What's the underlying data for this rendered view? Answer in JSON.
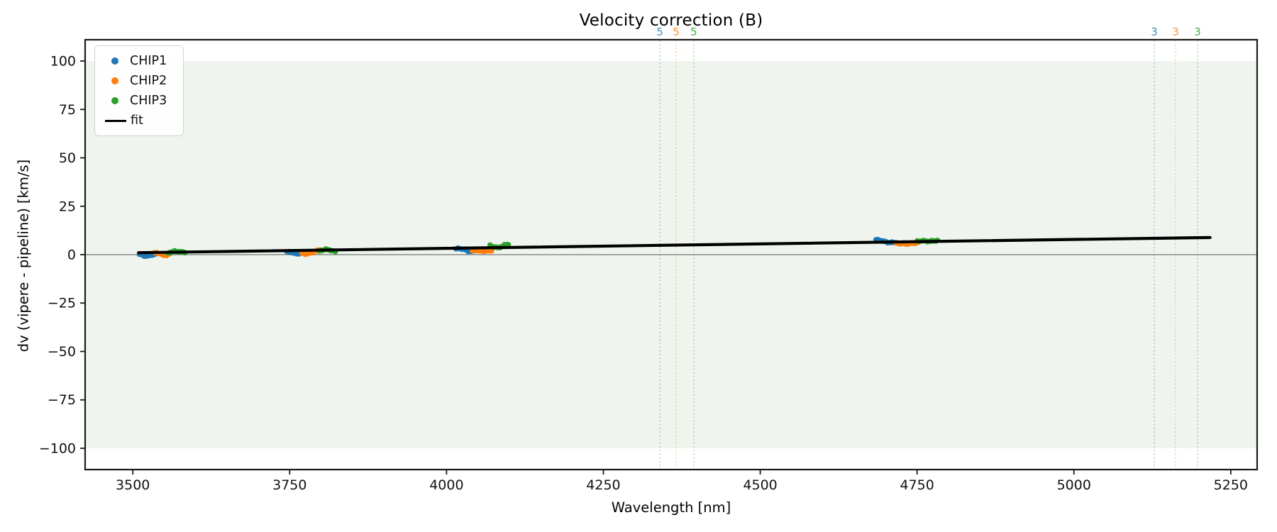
{
  "figure": {
    "kind": "matplotlib-style scatter plot with linear fit",
    "background": "#ffffff"
  },
  "chart_data": {
    "type": "scatter",
    "title": "Velocity correction (B)",
    "xlabel": "Wavelength [nm]",
    "ylabel": "dv (vipere - pipeline) [km/s]",
    "xlim": [
      3424,
      5292
    ],
    "ylim": [
      -111,
      111
    ],
    "x_ticks": [
      3500,
      3750,
      4000,
      4250,
      4500,
      4750,
      5000,
      5250
    ],
    "y_ticks": [
      -100,
      -75,
      -50,
      -25,
      0,
      25,
      50,
      75,
      100
    ],
    "grid": false,
    "legend_position": "upper left",
    "shaded_band": {
      "y_min": -100,
      "y_max": 100,
      "color": "#eff5ee"
    },
    "zero_line": {
      "y": 0,
      "color": "#888888"
    },
    "series": [
      {
        "name": "CHIP1",
        "color": "#1f77b4",
        "segments": [
          {
            "x_start": 3510,
            "x_end": 3537,
            "y": [
              0.1,
              -0.3,
              -0.8,
              -0.5,
              0.0,
              0.2
            ]
          },
          {
            "x_start": 3745,
            "x_end": 3772,
            "y": [
              1.2,
              1.5,
              0.9,
              0.4,
              0.8,
              1.0
            ]
          },
          {
            "x_start": 4014,
            "x_end": 4043,
            "y": [
              2.8,
              3.3,
              2.9,
              2.2,
              1.6,
              2.0
            ]
          },
          {
            "x_start": 4684,
            "x_end": 4718,
            "y": [
              7.8,
              7.4,
              6.8,
              6.3,
              6.2,
              6.4
            ]
          }
        ]
      },
      {
        "name": "CHIP2",
        "color": "#ff7f0e",
        "segments": [
          {
            "x_start": 3534,
            "x_end": 3560,
            "y": [
              0.8,
              1.0,
              0.3,
              -0.4,
              -0.2,
              0.5
            ]
          },
          {
            "x_start": 3769,
            "x_end": 3799,
            "y": [
              0.7,
              0.4,
              0.6,
              1.2,
              2.0,
              2.4
            ]
          },
          {
            "x_start": 4041,
            "x_end": 4072,
            "y": [
              2.0,
              2.2,
              2.0,
              1.8,
              2.0,
              2.2
            ]
          },
          {
            "x_start": 4716,
            "x_end": 4752,
            "y": [
              6.0,
              5.8,
              5.6,
              5.7,
              6.0,
              6.2
            ]
          }
        ]
      },
      {
        "name": "CHIP3",
        "color": "#2ca02c",
        "segments": [
          {
            "x_start": 3556,
            "x_end": 3584,
            "y": [
              0.8,
              1.4,
              1.8,
              1.6,
              1.3,
              1.2
            ]
          },
          {
            "x_start": 3797,
            "x_end": 3823,
            "y": [
              1.8,
              2.4,
              2.7,
              2.5,
              2.0,
              1.6
            ]
          },
          {
            "x_start": 4069,
            "x_end": 4099,
            "y": [
              4.8,
              4.0,
              3.6,
              4.0,
              5.0,
              5.6
            ]
          },
          {
            "x_start": 4750,
            "x_end": 4783,
            "y": [
              6.8,
              7.2,
              7.0,
              6.9,
              7.1,
              7.3
            ]
          }
        ]
      }
    ],
    "fit_line": {
      "label": "fit",
      "color": "#000000",
      "x_start": 3509,
      "y_start": 1.0,
      "x_end": 5217,
      "y_end": 8.85
    },
    "vertical_markers": [
      {
        "x": 4340,
        "label": "5",
        "color": "#1f77b4"
      },
      {
        "x": 4366,
        "label": "5",
        "color": "#ff7f0e"
      },
      {
        "x": 4394,
        "label": "5",
        "color": "#2ca02c"
      },
      {
        "x": 5128,
        "label": "3",
        "color": "#1f77b4"
      },
      {
        "x": 5162,
        "label": "3",
        "color": "#ff7f0e"
      },
      {
        "x": 5197,
        "label": "3",
        "color": "#2ca02c"
      }
    ]
  }
}
